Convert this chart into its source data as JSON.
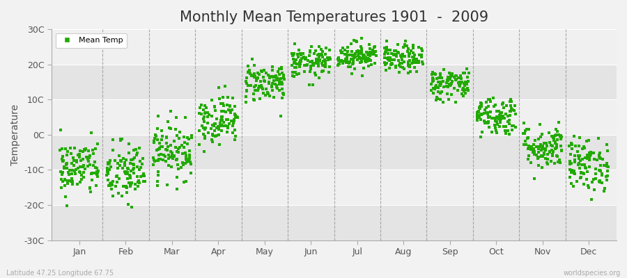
{
  "title": "Monthly Mean Temperatures 1901  -  2009",
  "ylabel": "Temperature",
  "xlabel_bottom_left": "Latitude 47.25 Longitude 67.75",
  "xlabel_bottom_right": "worldspecies.org",
  "dot_color": "#22aa00",
  "dot_size": 5,
  "legend_label": "Mean Temp",
  "ylim": [
    -30,
    30
  ],
  "yticks": [
    -30,
    -20,
    -10,
    0,
    10,
    20,
    30
  ],
  "ytick_labels": [
    "-30C",
    "-20C",
    "-10C",
    "0C",
    "10C",
    "20C",
    "30C"
  ],
  "months": [
    "Jan",
    "Feb",
    "Mar",
    "Apr",
    "May",
    "Jun",
    "Jul",
    "Aug",
    "Sep",
    "Oct",
    "Nov",
    "Dec"
  ],
  "background_color": "#f2f2f2",
  "plot_bg_light": "#f0f0f0",
  "plot_bg_dark": "#e4e4e4",
  "grid_color": "#888888",
  "title_fontsize": 15,
  "n_years": 109,
  "monthly_means": [
    -9.5,
    -11.0,
    -4.5,
    4.5,
    15.0,
    20.5,
    22.5,
    21.5,
    14.5,
    5.5,
    -3.5,
    -8.5
  ],
  "monthly_stds": [
    4.0,
    4.5,
    4.0,
    3.5,
    2.8,
    2.2,
    2.0,
    2.0,
    2.3,
    2.8,
    3.2,
    3.8
  ]
}
